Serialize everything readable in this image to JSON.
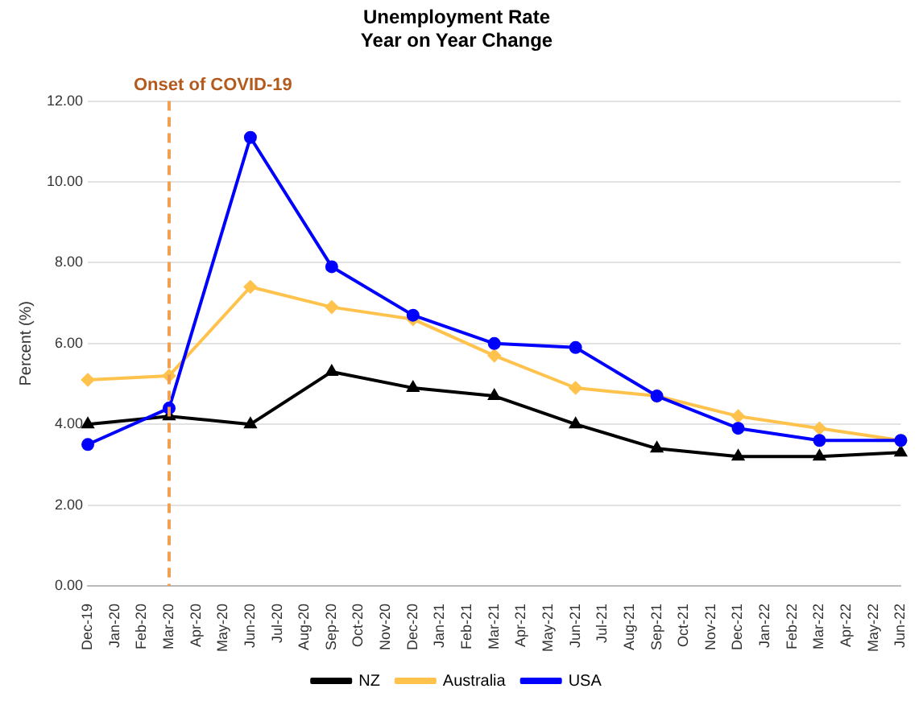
{
  "chart_data": {
    "type": "line",
    "title": "Unemployment Rate\nYear on Year Change",
    "ylabel": "Percent (%)",
    "categories": [
      "Dec-19",
      "Jan-20",
      "Feb-20",
      "Mar-20",
      "Apr-20",
      "May-20",
      "Jun-20",
      "Jul-20",
      "Aug-20",
      "Sep-20",
      "Oct-20",
      "Nov-20",
      "Dec-20",
      "Jan-21",
      "Feb-21",
      "Mar-21",
      "Apr-21",
      "May-21",
      "Jun-21",
      "Jul-21",
      "Aug-21",
      "Sep-21",
      "Oct-21",
      "Nov-21",
      "Dec-21",
      "Jan-22",
      "Feb-22",
      "Mar-22",
      "Apr-22",
      "May-22",
      "Jun-22"
    ],
    "series": [
      {
        "name": "NZ",
        "color": "#000000",
        "marker": "triangle",
        "values": [
          4.0,
          null,
          null,
          4.2,
          null,
          null,
          4.0,
          null,
          null,
          5.3,
          null,
          null,
          4.9,
          null,
          null,
          4.7,
          null,
          null,
          4.0,
          null,
          null,
          3.4,
          null,
          null,
          3.2,
          null,
          null,
          3.2,
          null,
          null,
          3.3
        ]
      },
      {
        "name": "Australia",
        "color": "#ffc34d",
        "marker": "diamond",
        "values": [
          5.1,
          null,
          null,
          5.2,
          null,
          null,
          7.4,
          null,
          null,
          6.9,
          null,
          null,
          6.6,
          null,
          null,
          5.7,
          null,
          null,
          4.9,
          null,
          null,
          4.7,
          null,
          null,
          4.2,
          null,
          null,
          3.9,
          null,
          null,
          3.6
        ]
      },
      {
        "name": "USA",
        "color": "#0000ff",
        "marker": "circle",
        "values": [
          3.5,
          null,
          null,
          4.4,
          null,
          null,
          11.1,
          null,
          null,
          7.9,
          null,
          null,
          6.7,
          null,
          null,
          6.0,
          null,
          null,
          5.9,
          null,
          null,
          4.7,
          null,
          null,
          3.9,
          null,
          null,
          3.6,
          null,
          null,
          3.6
        ]
      }
    ],
    "ylim": [
      0,
      12
    ],
    "yticks": [
      {
        "value": 0,
        "label": "0.00"
      },
      {
        "value": 2,
        "label": "2.00"
      },
      {
        "value": 4,
        "label": "4.00"
      },
      {
        "value": 6,
        "label": "6.00"
      },
      {
        "value": 8,
        "label": "8.00"
      },
      {
        "value": 10,
        "label": "10.00"
      },
      {
        "value": 12,
        "label": "12.00"
      }
    ],
    "ref_lines": [
      {
        "axis": "x",
        "value": "Mar-20",
        "label": "Onset of COVID-19",
        "color": "#f0a050",
        "line_style": "dashed"
      }
    ],
    "grid": "y",
    "legend": "bottom"
  }
}
